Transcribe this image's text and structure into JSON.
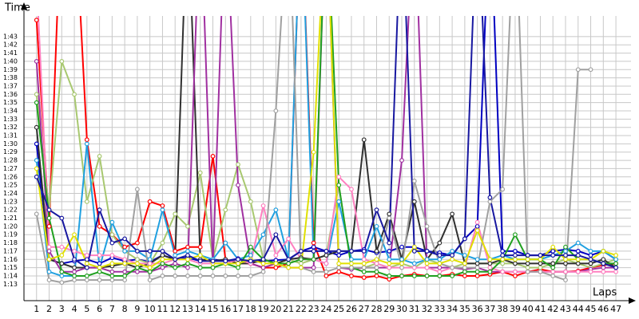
{
  "chart_data": {
    "type": "line",
    "y_label": "Time",
    "x_label": "Laps",
    "x": [
      1,
      2,
      3,
      4,
      5,
      6,
      7,
      8,
      9,
      10,
      11,
      12,
      13,
      14,
      15,
      16,
      17,
      18,
      19,
      20,
      21,
      22,
      23,
      24,
      25,
      26,
      27,
      28,
      29,
      30,
      31,
      32,
      33,
      34,
      35,
      36,
      37,
      38,
      39,
      40,
      41,
      42,
      43,
      44,
      45,
      46,
      47
    ],
    "xlim": [
      0,
      48.2
    ],
    "xticks": [
      1,
      2,
      3,
      4,
      5,
      6,
      7,
      8,
      9,
      10,
      11,
      12,
      13,
      14,
      15,
      16,
      17,
      18,
      19,
      20,
      21,
      22,
      23,
      24,
      25,
      26,
      27,
      28,
      29,
      30,
      31,
      32,
      33,
      34,
      35,
      36,
      37,
      38,
      39,
      40,
      41,
      42,
      43,
      44,
      45,
      46,
      47
    ],
    "ylim": [
      71,
      105.5
    ],
    "yticks": [
      {
        "value": 73,
        "label": "1:13"
      },
      {
        "value": 74,
        "label": "1:14"
      },
      {
        "value": 75,
        "label": "1:15"
      },
      {
        "value": 76,
        "label": "1:16"
      },
      {
        "value": 77,
        "label": "1:17"
      },
      {
        "value": 78,
        "label": "1:18"
      },
      {
        "value": 79,
        "label": "1:19"
      },
      {
        "value": 80,
        "label": "1:20"
      },
      {
        "value": 81,
        "label": "1:21"
      },
      {
        "value": 82,
        "label": "1:22"
      },
      {
        "value": 83,
        "label": "1:23"
      },
      {
        "value": 84,
        "label": "1:24"
      },
      {
        "value": 85,
        "label": "1:25"
      },
      {
        "value": 86,
        "label": "1:26"
      },
      {
        "value": 87,
        "label": "1:27"
      },
      {
        "value": 88,
        "label": "1:28"
      },
      {
        "value": 89,
        "label": "1:29"
      },
      {
        "value": 90,
        "label": "1:30"
      },
      {
        "value": 91,
        "label": "1:31"
      },
      {
        "value": 92,
        "label": "1:32"
      },
      {
        "value": 93,
        "label": "1:33"
      },
      {
        "value": 94,
        "label": "1:34"
      },
      {
        "value": 95,
        "label": "1:35"
      },
      {
        "value": 96,
        "label": "1:36"
      },
      {
        "value": 97,
        "label": "1:37"
      },
      {
        "value": 98,
        "label": "1:38"
      },
      {
        "value": 99,
        "label": "1:39"
      },
      {
        "value": 100,
        "label": "1:40"
      },
      {
        "value": 101,
        "label": "1:41"
      },
      {
        "value": 102,
        "label": "1:42"
      },
      {
        "value": 103,
        "label": "1:43"
      }
    ],
    "grid": true,
    "series": [
      {
        "color": "#0000c0",
        "values": [
          90,
          76,
          75.5,
          75.8,
          76,
          75.5,
          76.2,
          75.8,
          76,
          75.7,
          76.5,
          76,
          76.2,
          75.8,
          76,
          75.8,
          76.1,
          75.6,
          75.8,
          75.9,
          76,
          77,
          77.5,
          77,
          76.5,
          77,
          77.2,
          76.8,
          77,
          77.5,
          77.5,
          77,
          76.8,
          76.5,
          78.5,
          80,
          120,
          77,
          77,
          76.5,
          76.5,
          77,
          77.2,
          77,
          76.5,
          77,
          76
        ]
      },
      {
        "color": "#ff0000",
        "values": [
          105,
          80,
          120,
          120,
          90.5,
          80,
          79,
          77.5,
          78,
          83,
          82.5,
          77,
          77.5,
          77.5,
          88.5,
          76,
          75.5,
          75.5,
          75,
          75,
          75.5,
          120,
          78,
          74,
          74.5,
          74,
          73.8,
          74,
          73.6,
          74,
          74.2,
          74,
          74,
          74.2,
          74,
          74,
          74.2,
          74.5,
          74,
          74.5,
          74.8,
          74.5,
          74.5,
          74.6,
          75,
          75.3,
          75.5
        ]
      },
      {
        "color": "#a8c870",
        "values": [
          96,
          82,
          100,
          96,
          83,
          88.5,
          79,
          77,
          76,
          75.5,
          78,
          81.5,
          80,
          86.5,
          76,
          82,
          87.5,
          83,
          76,
          75.5,
          76,
          75.5,
          76,
          76.5,
          85,
          75,
          75,
          75.5,
          75,
          75.5,
          75,
          76,
          75.5,
          75,
          75.5,
          75.5,
          75.5,
          75.5,
          75.5,
          75,
          75,
          75.5,
          76,
          75.5,
          75,
          75.5,
          76
        ]
      },
      {
        "color": "#303030",
        "values": [
          92,
          76,
          75.5,
          75,
          75,
          75,
          75.2,
          75.5,
          75,
          75.5,
          76.5,
          76,
          120,
          76,
          75.8,
          76,
          75.5,
          75.5,
          76,
          75.5,
          76,
          76.2,
          76,
          76.5,
          77,
          77,
          90.5,
          77,
          81.5,
          76,
          83,
          76,
          78,
          81.5,
          75.5,
          75.5,
          75.5,
          76,
          75.5,
          75.5,
          75.5,
          75.5,
          75.5,
          75.5,
          75.5,
          76,
          75
        ]
      },
      {
        "color": "#a030a0",
        "values": [
          100,
          77,
          74.5,
          74.5,
          75,
          75,
          74.5,
          74.5,
          74.5,
          74.5,
          75,
          75.5,
          75,
          120,
          75,
          120,
          85,
          75.5,
          75,
          75.5,
          75,
          75,
          75,
          120,
          75,
          74.8,
          75,
          75,
          75,
          88,
          120,
          75,
          75,
          75,
          74.8,
          75,
          74.5,
          74.5,
          74.5,
          74.5,
          74.5,
          74.5,
          74.5,
          74.5,
          74.8,
          75,
          75
        ]
      },
      {
        "color": "#20a0e0",
        "values": [
          88,
          74.5,
          74,
          74,
          90,
          75,
          80.5,
          77,
          77,
          76,
          82,
          76.5,
          77,
          76.5,
          76,
          78,
          76,
          76.5,
          79,
          82,
          76,
          120,
          76,
          75.5,
          83,
          76,
          76,
          80,
          76,
          76,
          75.5,
          76,
          76,
          77,
          76.5,
          76,
          76,
          76.5,
          76,
          76,
          76,
          76.5,
          77,
          78,
          77,
          77,
          76
        ]
      },
      {
        "color": "#ff80c0",
        "values": [
          110,
          77.5,
          77.5,
          77,
          76.5,
          76.5,
          76.5,
          76,
          75.5,
          75.5,
          75.5,
          76,
          76,
          75.5,
          75.5,
          75.5,
          76,
          75.5,
          82.5,
          76.5,
          78.5,
          76,
          76,
          75.5,
          86,
          84.5,
          76,
          75.5,
          75,
          75,
          75,
          75,
          74.5,
          75,
          75,
          80.5,
          75,
          74.5,
          74.5,
          74.5,
          74.5,
          74.5,
          74.5,
          74.5,
          74.5,
          74.5,
          74.5
        ]
      },
      {
        "color": "#20a020",
        "values": [
          95,
          81,
          74.5,
          74,
          74,
          74.5,
          74,
          74,
          75,
          74.5,
          75.5,
          75,
          75.5,
          75,
          75,
          75.5,
          75,
          77.5,
          76,
          75.5,
          75.5,
          76,
          76,
          120,
          85,
          75,
          74.5,
          74.5,
          74,
          74,
          74,
          74,
          74,
          74,
          74.5,
          74.5,
          74.5,
          76,
          79,
          76,
          76,
          75,
          77.5,
          76,
          76,
          75.5,
          75.5
        ]
      },
      {
        "color": "#a0a0a0",
        "values": [
          81.5,
          73.5,
          73.2,
          73.5,
          73.5,
          73.5,
          73.5,
          73.5,
          84.5,
          73.5,
          74,
          74,
          74,
          74,
          74,
          74,
          74,
          74,
          74.5,
          94,
          120,
          75,
          74.5,
          74.5,
          75,
          75,
          75,
          75,
          81,
          75,
          85.5,
          80,
          75.5,
          75,
          75,
          75,
          83,
          84.5,
          120,
          74.5,
          74.5,
          74,
          73.5,
          99,
          99,
          null,
          null
        ]
      },
      {
        "color": "#e0e000",
        "values": [
          87,
          76,
          76.5,
          79,
          75.5,
          75,
          75.5,
          75.5,
          75.5,
          75,
          76,
          76,
          76,
          76.5,
          75.5,
          75.5,
          75.5,
          76,
          75.5,
          75.5,
          75,
          75,
          89,
          120,
          75.5,
          75.5,
          75.5,
          76,
          75.5,
          75.5,
          77.5,
          75.5,
          75.5,
          76,
          75.5,
          79.5,
          76,
          76,
          76,
          76,
          76,
          77.5,
          76,
          76,
          76,
          77,
          76.5
        ]
      },
      {
        "color": "#1818a0",
        "values": [
          86,
          82,
          81,
          76,
          75,
          82,
          78,
          78.5,
          77,
          77,
          77,
          76,
          76.5,
          75.8,
          75.8,
          75.8,
          76,
          75.8,
          76,
          79,
          76,
          77,
          77,
          77,
          77,
          77,
          77,
          82,
          78,
          120,
          77,
          77,
          76.5,
          76.5,
          78.5,
          120,
          83.5,
          76.5,
          76.5,
          76.5,
          76.5,
          76.5,
          76.5,
          76.5,
          76,
          75.5,
          75
        ]
      }
    ]
  }
}
